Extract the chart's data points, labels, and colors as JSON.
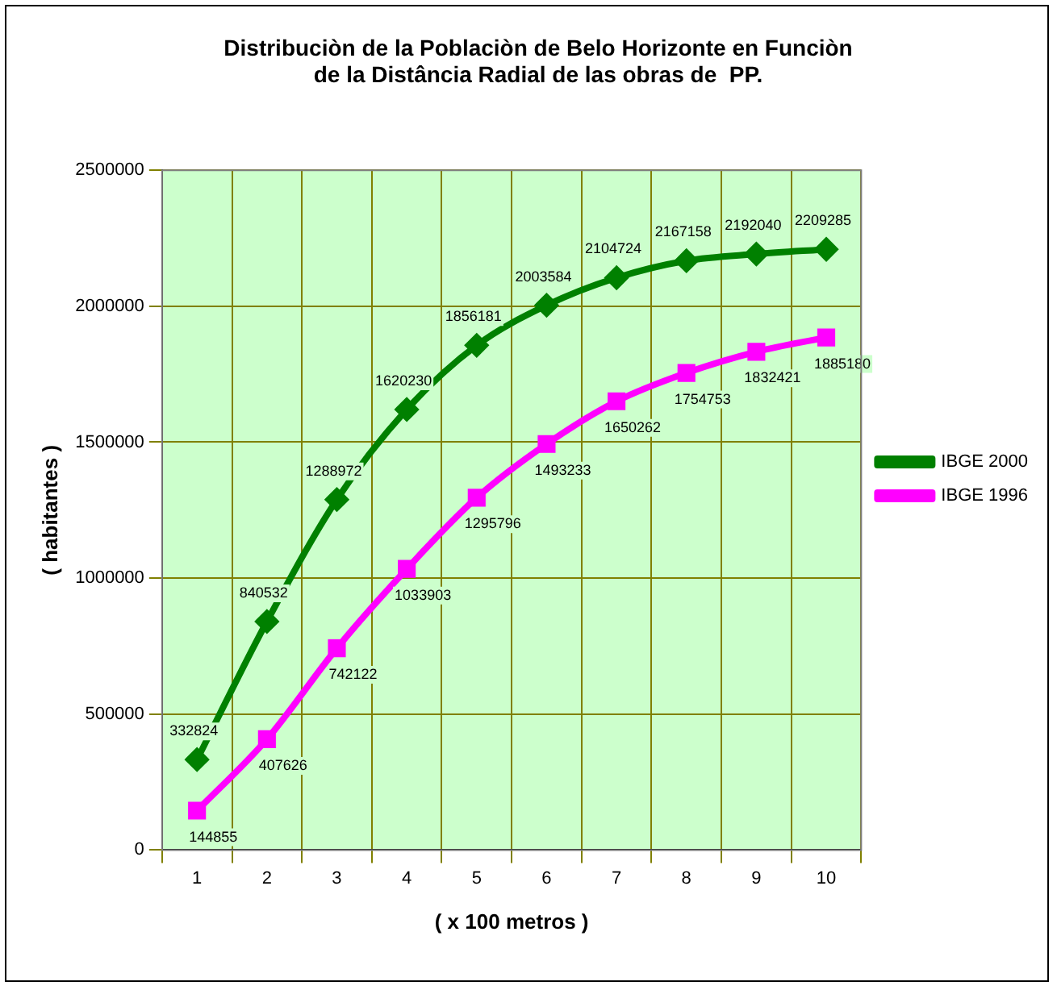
{
  "chart_data": {
    "type": "line",
    "title": "Distribuciòn de la Poblaciòn de Belo Horizonte en Funciòn\nde la Distância Radial de las obras de  PP.",
    "xlabel": "( x 100 metros )",
    "ylabel": "( habitantes )",
    "categories": [
      "1",
      "2",
      "3",
      "4",
      "5",
      "6",
      "7",
      "8",
      "9",
      "10"
    ],
    "series": [
      {
        "name": "IBGE 2000",
        "color": "#008000",
        "marker": "diamond",
        "values": [
          332824,
          840532,
          1288972,
          1620230,
          1856181,
          2003584,
          2104724,
          2167158,
          2192040,
          2209285
        ]
      },
      {
        "name": "IBGE 1996",
        "color": "#ff00ff",
        "marker": "square",
        "values": [
          144855,
          407626,
          742122,
          1033903,
          1295796,
          1493233,
          1650262,
          1754753,
          1832421,
          1885180
        ]
      }
    ],
    "ylim": [
      0,
      2500000
    ],
    "yticks": [
      0,
      500000,
      1000000,
      1500000,
      2000000,
      2500000
    ],
    "grid": true,
    "legend": "right",
    "data_labels": true
  }
}
